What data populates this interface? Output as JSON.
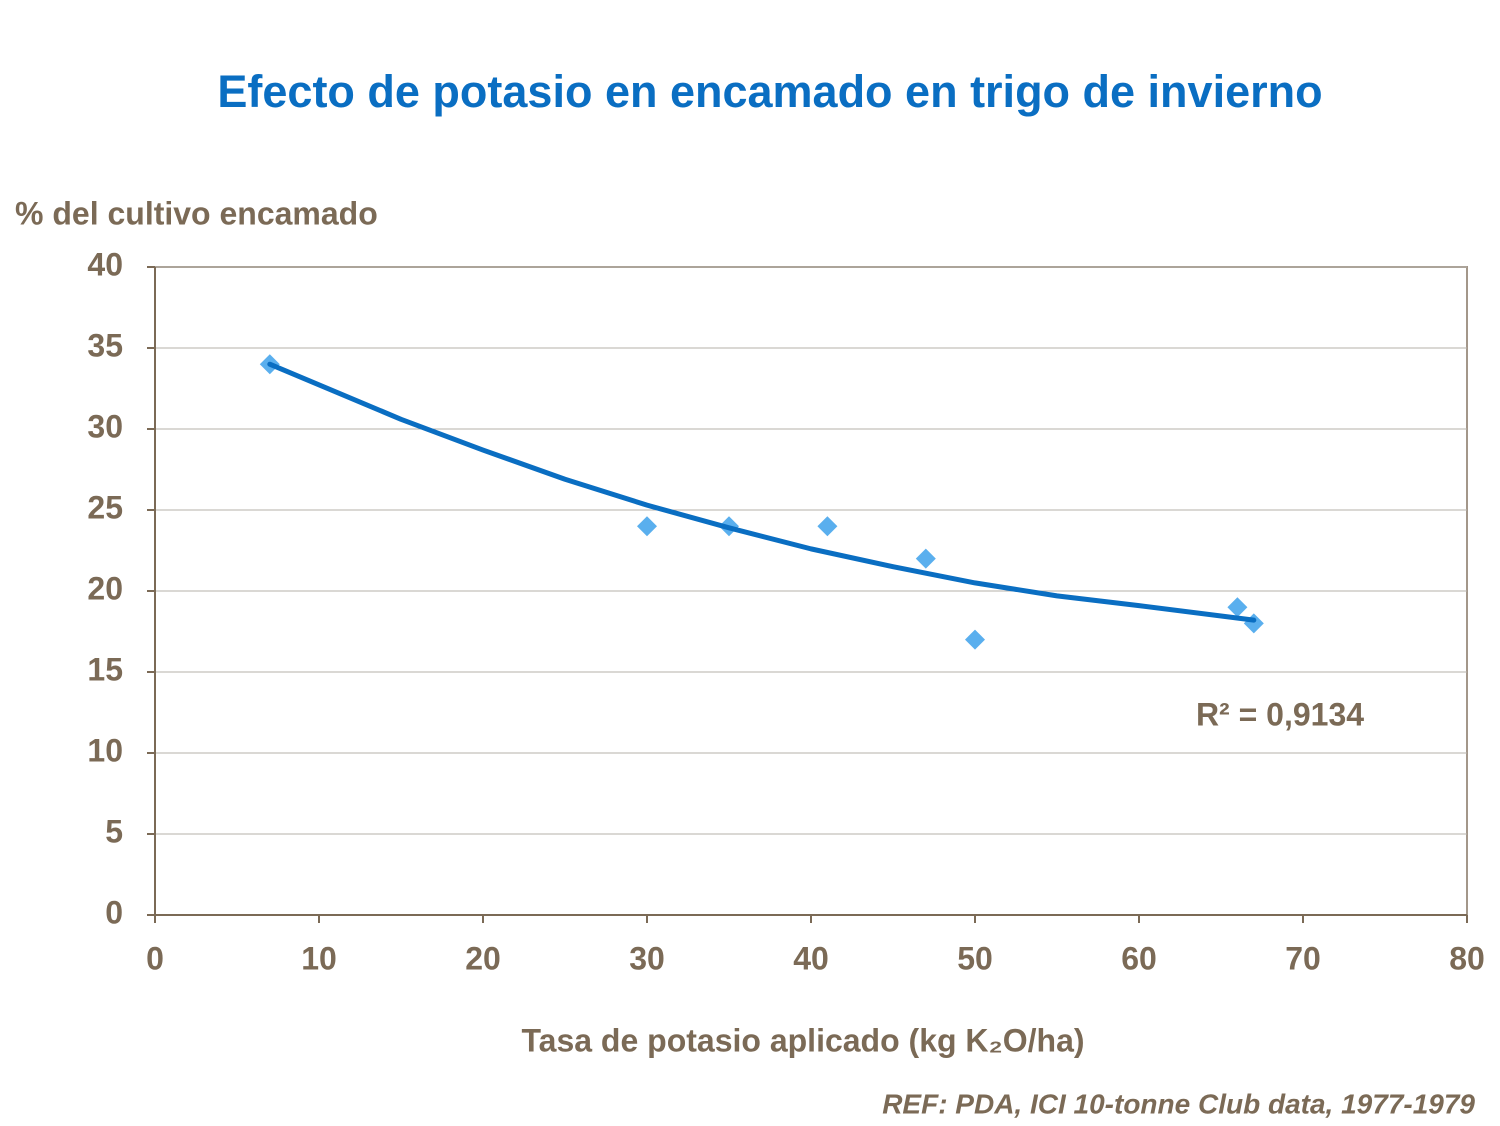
{
  "chart_data": {
    "type": "scatter",
    "title": "Efecto de potasio en encamado en trigo de invierno",
    "y_label": "% del cultivo encamado",
    "x_label": "Tasa de potasio aplicado (kg K₂O/ha)",
    "annotation": "R² = 0,9134",
    "source": "REF: PDA, ICI 10-tonne Club data, 1977-1979",
    "xlim": [
      0,
      80
    ],
    "xticks": [
      0,
      10,
      20,
      30,
      40,
      50,
      60,
      70,
      80
    ],
    "ylim": [
      0,
      40
    ],
    "yticks": [
      0,
      5,
      10,
      15,
      20,
      25,
      30,
      35,
      40
    ],
    "grid": true,
    "series": [
      {
        "color": "#5aafee",
        "marker": "diamond",
        "x": [
          7,
          30,
          35,
          41,
          47,
          50,
          66,
          67
        ],
        "values": [
          34,
          24,
          24,
          24,
          22,
          17,
          19,
          18
        ]
      }
    ],
    "trendline": {
      "color": "#0a6ec2",
      "x": [
        7,
        15,
        20,
        25,
        30,
        35,
        40,
        45,
        50,
        55,
        60,
        67
      ],
      "values": [
        34.0,
        30.6,
        28.7,
        26.9,
        25.3,
        23.9,
        22.6,
        21.5,
        20.5,
        19.7,
        19.1,
        18.2
      ]
    }
  }
}
